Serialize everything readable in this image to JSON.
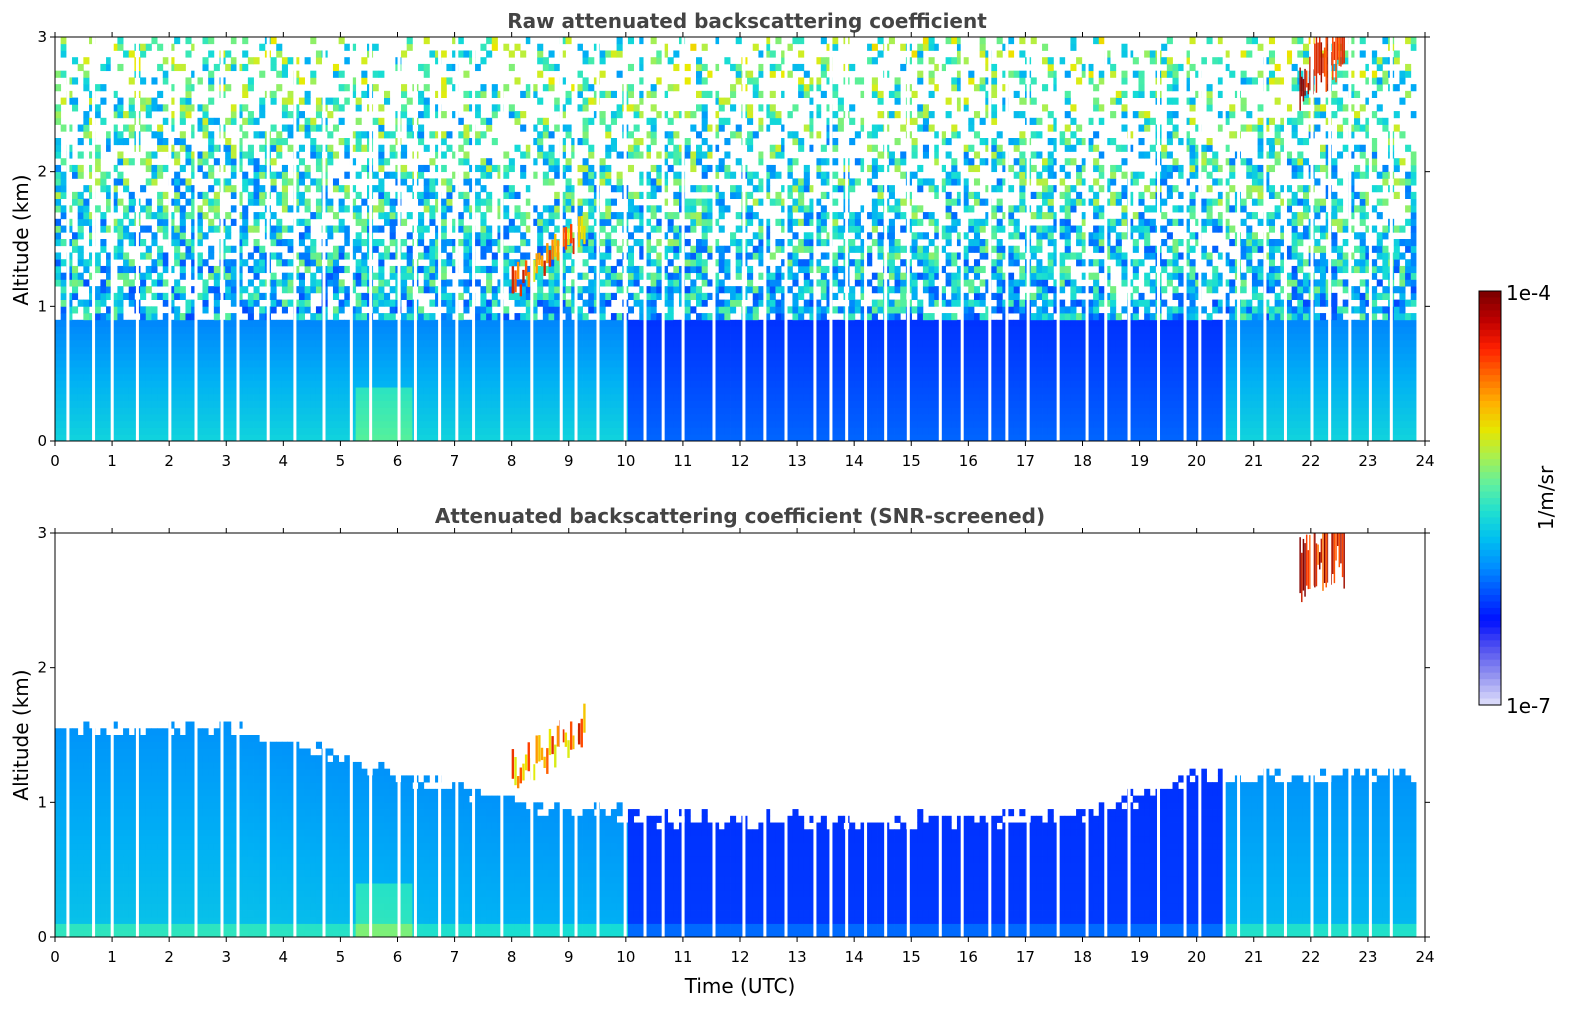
{
  "chart_data": [
    {
      "type": "heatmap",
      "title": "Raw attenuated backscattering coefficient",
      "xlabel": "",
      "ylabel": "Altitude (km)",
      "xlim": [
        0,
        24
      ],
      "ylim": [
        0,
        3
      ],
      "x_ticks": [
        "0",
        "1",
        "2",
        "3",
        "4",
        "5",
        "6",
        "7",
        "8",
        "9",
        "10",
        "11",
        "12",
        "13",
        "14",
        "15",
        "16",
        "17",
        "18",
        "19",
        "20",
        "21",
        "22",
        "23",
        "24"
      ],
      "y_ticks": [
        "0",
        "1",
        "2",
        "3"
      ],
      "color_scale": "log",
      "features": [
        {
          "time_range": [
            0,
            24
          ],
          "altitude_range": [
            0,
            3
          ],
          "level": "noisy background, near-surface aerosol layer below ~1 km"
        },
        {
          "time_range": [
            8.0,
            9.3
          ],
          "altitude_range": [
            1.1,
            1.5
          ],
          "level": "high (cloud)"
        },
        {
          "time_range": [
            21.8,
            22.6
          ],
          "altitude_range": [
            2.5,
            3.0
          ],
          "level": "very high (cloud)"
        }
      ]
    },
    {
      "type": "heatmap",
      "title": "Attenuated backscattering coefficient (SNR-screened)",
      "xlabel": "Time (UTC)",
      "ylabel": "Altitude (km)",
      "xlim": [
        0,
        24
      ],
      "ylim": [
        0,
        3
      ],
      "x_ticks": [
        "0",
        "1",
        "2",
        "3",
        "4",
        "5",
        "6",
        "7",
        "8",
        "9",
        "10",
        "11",
        "12",
        "13",
        "14",
        "15",
        "16",
        "17",
        "18",
        "19",
        "20",
        "21",
        "22",
        "23",
        "24"
      ],
      "y_ticks": [
        "0",
        "1",
        "2",
        "3"
      ],
      "color_scale": "log",
      "boundary_layer_top_km": [
        {
          "t": 0,
          "h": 1.55
        },
        {
          "t": 3,
          "h": 1.55
        },
        {
          "t": 6,
          "h": 1.2
        },
        {
          "t": 8,
          "h": 1.0
        },
        {
          "t": 10,
          "h": 0.9
        },
        {
          "t": 14,
          "h": 0.85
        },
        {
          "t": 18,
          "h": 0.9
        },
        {
          "t": 20,
          "h": 1.2
        },
        {
          "t": 23.9,
          "h": 1.2
        }
      ],
      "features": [
        {
          "time_range": [
            8.0,
            9.3
          ],
          "altitude_range": [
            1.1,
            1.5
          ],
          "level": "high (cloud)"
        },
        {
          "time_range": [
            21.8,
            22.6
          ],
          "altitude_range": [
            2.5,
            3.0
          ],
          "level": "very high (cloud)"
        }
      ]
    }
  ],
  "colorbar": {
    "label": "1/m/sr",
    "max_label": "1e-4",
    "min_label": "1e-7",
    "colors": [
      "#800000",
      "#c00000",
      "#ff2000",
      "#ff6a00",
      "#ffb000",
      "#e6e600",
      "#a8f050",
      "#60f0a0",
      "#20e0d0",
      "#00c0f0",
      "#0090ff",
      "#0050ff",
      "#0010ff",
      "#5050f0",
      "#9090f0",
      "#d8d8fa"
    ]
  }
}
